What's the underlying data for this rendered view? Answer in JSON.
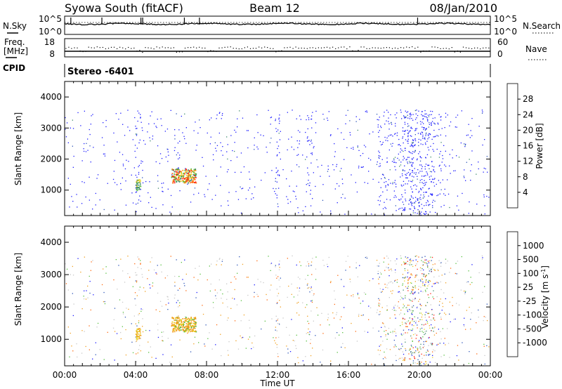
{
  "header": {
    "station": "Syowa South (fitACF)",
    "beam": "Beam 12",
    "date": "08/Jan/2010"
  },
  "noise_panel": {
    "left_label": "N.Sky",
    "right_label": "N.Search",
    "ytick_top": "10^5",
    "ytick_bottom": "10^0"
  },
  "freq_panel": {
    "left_label_line1": "Freq.",
    "left_label_line2": "[MHz]",
    "right_label": "Nave",
    "left_ticks": [
      "18",
      "8"
    ],
    "right_ticks": [
      "60",
      "0"
    ]
  },
  "cpid": {
    "label": "CPID",
    "value": "Stereo -6401"
  },
  "colors": {
    "power_scale": [
      "#1a1aff",
      "#2e56b8",
      "#3c8a6a",
      "#58c040",
      "#e8d020",
      "#f0a020",
      "#ff6a10",
      "#ff2010"
    ],
    "velocity_scale": [
      "#1a1aff",
      "#2e56b8",
      "#3c8a6a",
      "#58c040",
      "#c8c8c8",
      "#e8d020",
      "#f0a020",
      "#ff6a10",
      "#ff2010"
    ]
  },
  "chart_data": [
    {
      "type": "heatmap",
      "name": "power",
      "ylabel": "Slant Range [km]",
      "ylim": [
        180,
        4500
      ],
      "yticks": [
        "1000",
        "2000",
        "3000",
        "4000"
      ],
      "colorbar_label": "Power [dB]",
      "colorbar_ticks": [
        "4",
        "8",
        "12",
        "16",
        "20",
        "24",
        "28"
      ],
      "clim": [
        0,
        32
      ]
    },
    {
      "type": "heatmap",
      "name": "velocity",
      "ylabel": "Slant Range [km]",
      "ylim": [
        180,
        4500
      ],
      "yticks": [
        "1000",
        "2000",
        "3000",
        "4000"
      ],
      "colorbar_label": "Velocity [m s^-1]",
      "colorbar_ticks": [
        "1000",
        "500",
        "100",
        "25",
        "-25",
        "-100",
        "-500",
        "-1000"
      ]
    }
  ],
  "time_axis": {
    "xlabel": "Time UT",
    "ticks": [
      "00:00",
      "04:00",
      "08:00",
      "12:00",
      "16:00",
      "20:00",
      "00:00"
    ],
    "xlim_hours": [
      0,
      24
    ]
  }
}
